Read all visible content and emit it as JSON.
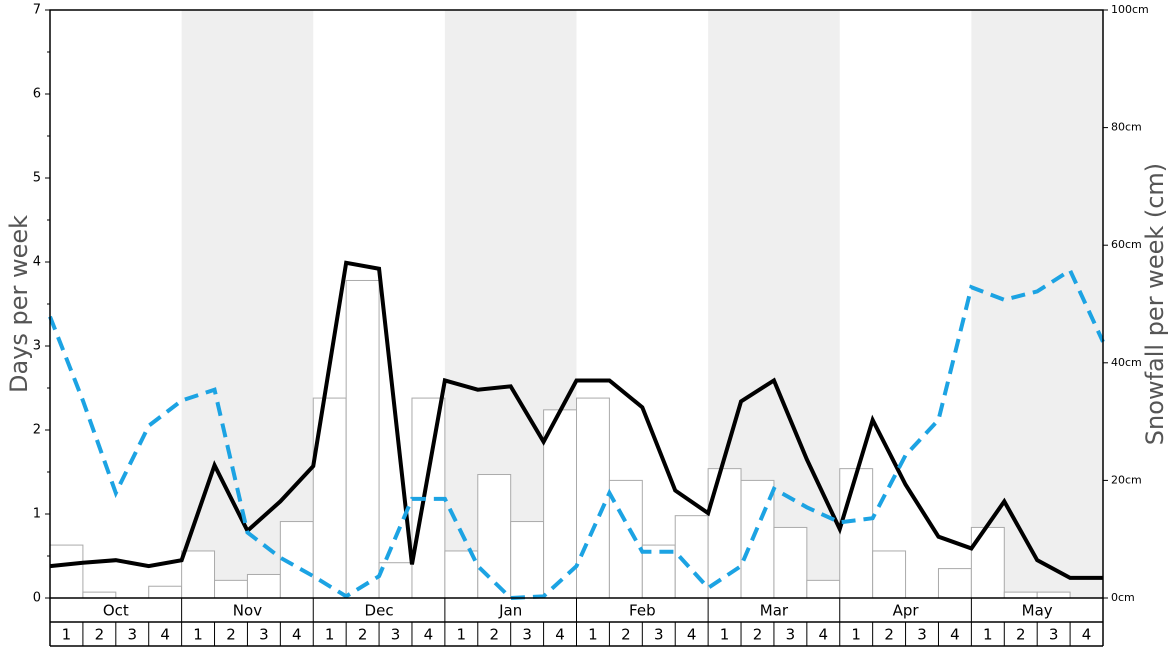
{
  "chart_data": {
    "type": "bar",
    "left_axis": {
      "label": "Days per week",
      "ylim": [
        0,
        7
      ],
      "ticks": [
        "0",
        "1",
        "2",
        "3",
        "4",
        "5",
        "6",
        "7"
      ]
    },
    "right_axis": {
      "label": "Snowfall per week (cm)",
      "ylim": [
        0,
        100
      ],
      "ticks": [
        "0cm",
        "20cm",
        "40cm",
        "60cm",
        "80cm",
        "100cm"
      ]
    },
    "months": [
      "Oct",
      "Nov",
      "Dec",
      "Jan",
      "Feb",
      "Mar",
      "Apr",
      "May"
    ],
    "weeks": [
      "1",
      "2",
      "3",
      "4"
    ],
    "series": [
      {
        "kind": "bar",
        "axis": "right",
        "unit": "cm",
        "color": "#ffffff",
        "edge": "#aaaaaa",
        "values": [
          9,
          1,
          0,
          2,
          8,
          3,
          4,
          13,
          34,
          54,
          6,
          34,
          8,
          21,
          13,
          32,
          34,
          20,
          9,
          14,
          22,
          20,
          12,
          3,
          22,
          8,
          0,
          5,
          12,
          1,
          1,
          0
        ]
      },
      {
        "kind": "line",
        "axis": "left",
        "color": "#000000",
        "style": "solid",
        "values": [
          0.38,
          0.42,
          0.45,
          0.38,
          0.45,
          1.58,
          0.8,
          1.15,
          1.57,
          3.99,
          3.92,
          0.4,
          2.59,
          2.48,
          2.52,
          1.86,
          2.59,
          2.59,
          2.27,
          1.28,
          1.01,
          2.34,
          2.59,
          1.65,
          0.82,
          2.12,
          1.35,
          0.73,
          0.59,
          1.15,
          0.45,
          0.24,
          0.24
        ]
      },
      {
        "kind": "line",
        "axis": "left",
        "color": "#1ca3e3",
        "style": "dashed",
        "values": [
          3.35,
          2.35,
          1.25,
          2.05,
          2.35,
          2.48,
          0.78,
          0.48,
          0.26,
          0.02,
          0.26,
          1.18,
          1.18,
          0.38,
          0.0,
          0.02,
          0.38,
          1.25,
          0.55,
          0.55,
          0.12,
          0.38,
          1.3,
          1.08,
          0.9,
          0.95,
          1.7,
          2.12,
          3.7,
          3.55,
          3.65,
          3.9,
          3.05
        ]
      }
    ],
    "background": {
      "shade": "#efefef",
      "shaded_months": [
        "Nov",
        "Jan",
        "Mar",
        "May"
      ]
    }
  }
}
